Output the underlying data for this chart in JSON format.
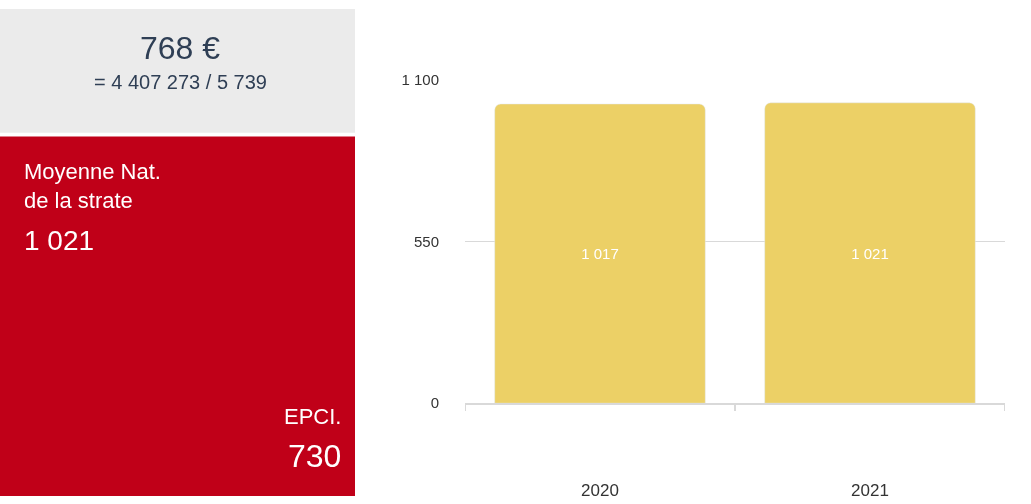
{
  "chart_data": [
    {
      "type": "other",
      "annotations": [
        "768 €",
        "= 4 407 273 / 5 739",
        "Moyenne Nat.\nde la strate",
        "1 021",
        "EPCI.",
        "730"
      ]
    },
    {
      "type": "bar",
      "categories": [
        "2020",
        "2021"
      ],
      "values": [
        1017,
        1021
      ],
      "color": "#ecd066",
      "value_labels": [
        "1 017",
        "1 021"
      ],
      "ylim": [
        0,
        1100
      ],
      "yticks": [
        0,
        550,
        {
          "value": 1100,
          "label": "1 100"
        }
      ],
      "grid": "y"
    }
  ]
}
